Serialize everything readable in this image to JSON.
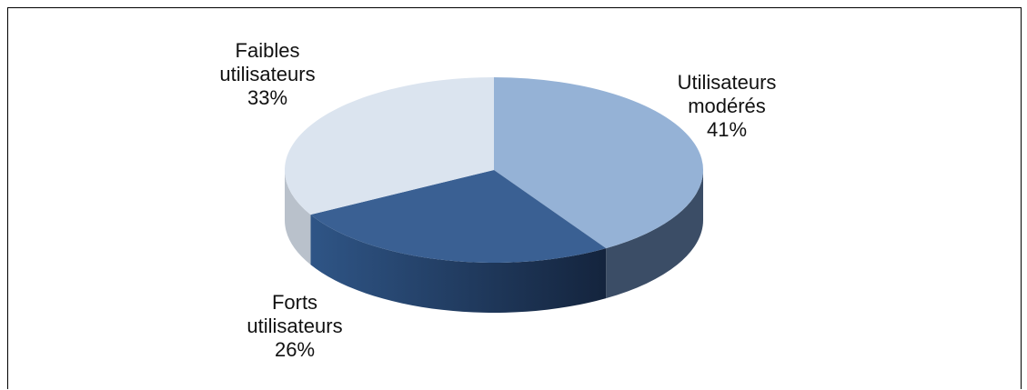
{
  "chart_data": {
    "type": "pie",
    "title": "",
    "categories": [
      "Utilisateurs modérés",
      "Forts utilisateurs",
      "Faibles utilisateurs"
    ],
    "values": [
      41,
      26,
      33
    ],
    "labels": [
      {
        "name_lines": [
          "Utilisateurs",
          "modérés"
        ],
        "pct": "41%"
      },
      {
        "name_lines": [
          "Forts",
          "utilisateurs"
        ],
        "pct": "26%"
      },
      {
        "name_lines": [
          "Faibles",
          "utilisateurs"
        ],
        "pct": "33%"
      }
    ],
    "colors": {
      "Utilisateurs modérés": "#95b2d6",
      "Forts utilisateurs": "#3a6093",
      "Faibles utilisateurs": "#dbe4ef"
    },
    "side_colors": {
      "Utilisateurs modérés": "#3b4d66",
      "Forts utilisateurs": "#24416a",
      "Faibles utilisateurs": "#b9c1cb"
    },
    "legend": "none",
    "style": "3d-pie"
  }
}
